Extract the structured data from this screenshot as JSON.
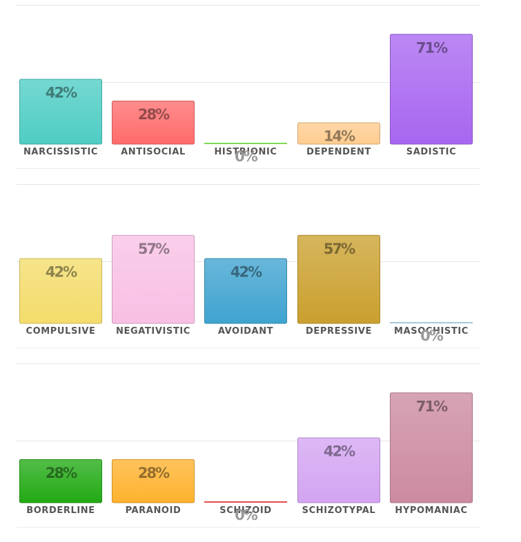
{
  "chart_data": [
    {
      "type": "bar",
      "ylim": [
        0,
        100
      ],
      "grid": true,
      "categories": [
        "NARCISSISTIC",
        "ANTISOCIAL",
        "HISTRIONIC",
        "DEPENDENT",
        "SADISTIC"
      ],
      "values": [
        42,
        28,
        0,
        14,
        71
      ],
      "value_labels": [
        "42%",
        "28%",
        "0%",
        "14%",
        "71%"
      ],
      "colors": [
        "#4ecdc4",
        "#ff6b6b",
        "#7ed957",
        "#ffcc8f",
        "#a866f0"
      ]
    },
    {
      "type": "bar",
      "ylim": [
        0,
        100
      ],
      "grid": true,
      "categories": [
        "COMPULSIVE",
        "NEGATIVISTIC",
        "AVOIDANT",
        "DEPRESSIVE",
        "MASOCHISTIC"
      ],
      "values": [
        42,
        57,
        42,
        57,
        0
      ],
      "value_labels": [
        "42%",
        "57%",
        "42%",
        "57%",
        "0%"
      ],
      "colors": [
        "#f3dc6a",
        "#f8c0e4",
        "#3fa3d0",
        "#caa02e",
        "#a8c8d8"
      ]
    },
    {
      "type": "bar",
      "ylim": [
        0,
        100
      ],
      "grid": true,
      "categories": [
        "BORDERLINE",
        "PARANOID",
        "SCHIZOID",
        "SCHIZOTYPAL",
        "HYPOMANIAC"
      ],
      "values": [
        28,
        28,
        0,
        42,
        71
      ],
      "value_labels": [
        "28%",
        "28%",
        "0%",
        "42%",
        "71%"
      ],
      "colors": [
        "#22aa14",
        "#ffb22e",
        "#e34c4c",
        "#d3a4f2",
        "#cc8aa0"
      ]
    }
  ]
}
